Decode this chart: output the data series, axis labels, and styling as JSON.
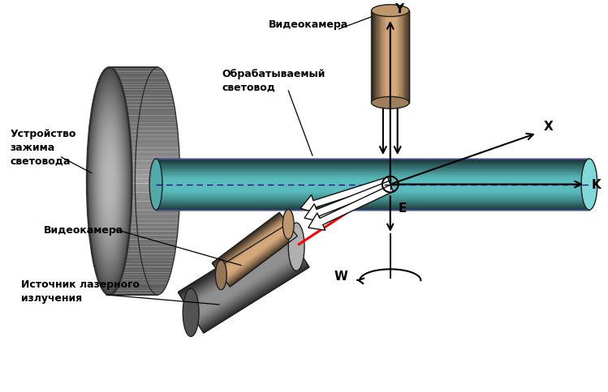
{
  "bg_color": "#ffffff",
  "fiber_color": "#5abcbc",
  "fiber_top_color": "#80d8d8",
  "fiber_edge_color": "#5050a0",
  "fiber_dashed_color": "#000080",
  "camera_color": "#d4a87a",
  "laser_color": "#909090",
  "arrow_color": "#000000",
  "laser_beam_color": "#ff0000",
  "label_clamp": "Устройство\nзажима\nсветовода",
  "label_fiber": "Обрабатываемый\nсветовод",
  "label_camera_top": "Видеокамера",
  "label_camera_side": "Видеокамера",
  "label_laser": "Источник лазерного\nизлучения",
  "label_X": "X",
  "label_Y": "Y",
  "label_K": "K",
  "label_E": "E",
  "label_W": "W"
}
